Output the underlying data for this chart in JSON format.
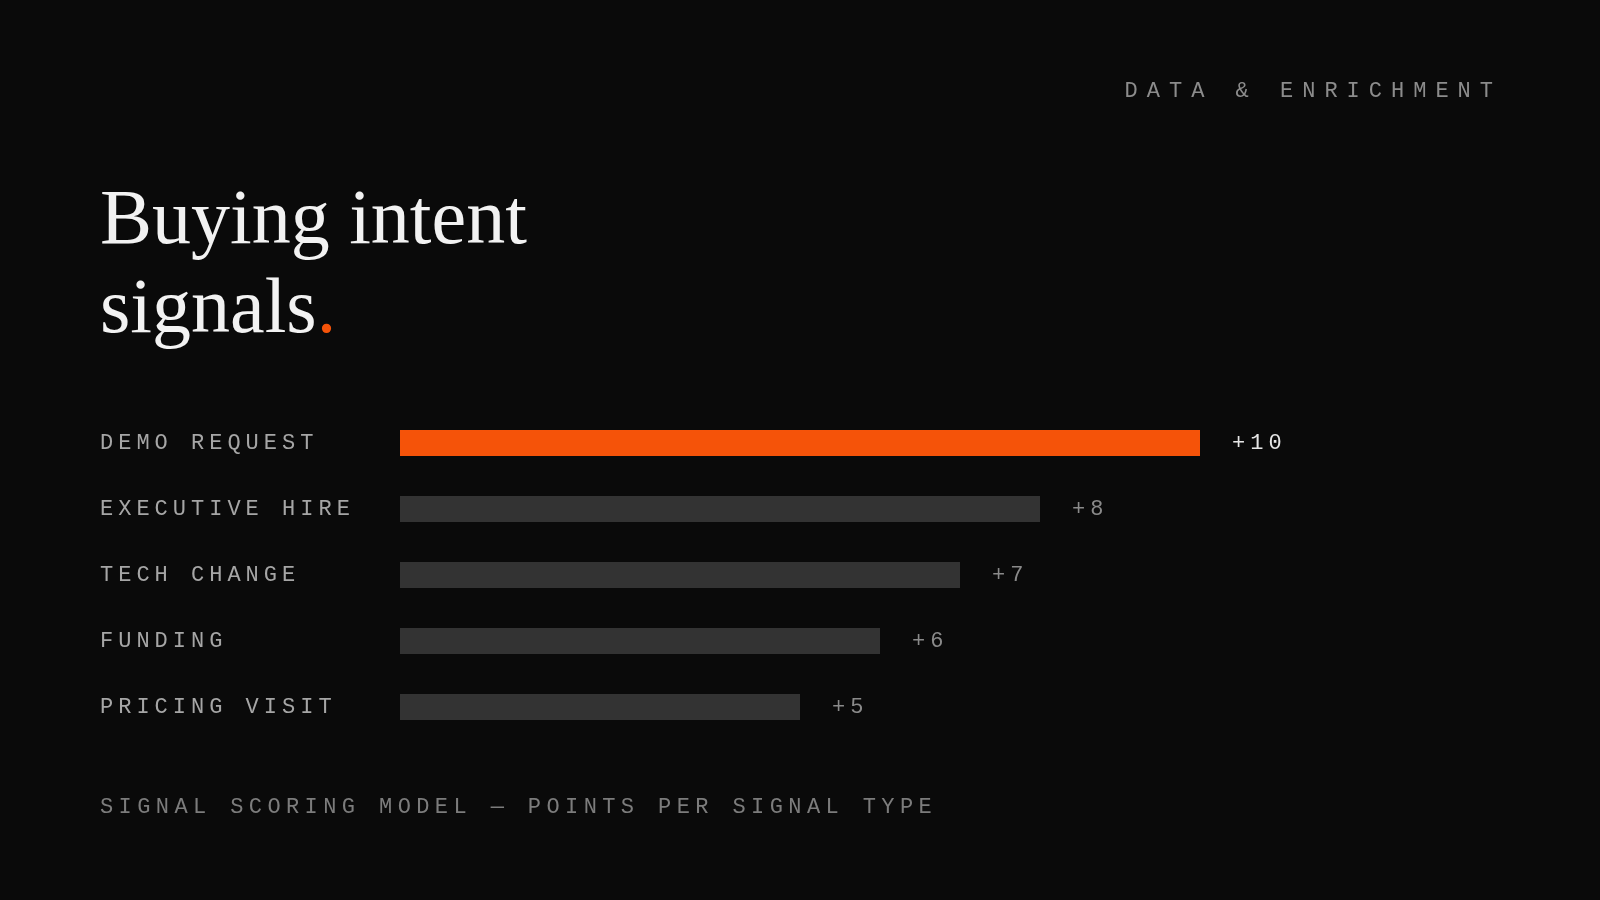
{
  "chart_data": {
    "type": "bar",
    "orientation": "horizontal",
    "title": "Buying intent signals.",
    "subtitle": "DATA & ENRICHMENT",
    "categories": [
      "DEMO REQUEST",
      "EXECUTIVE HIRE",
      "TECH CHANGE",
      "FUNDING",
      "PRICING VISIT"
    ],
    "values": [
      10,
      8,
      7,
      6,
      5
    ],
    "value_labels": [
      "+10",
      "+8",
      "+7",
      "+6",
      "+5"
    ],
    "colors": [
      "#f55309",
      "#333333",
      "#333333",
      "#333333",
      "#333333"
    ],
    "xlim": [
      0,
      10
    ],
    "tick_labels": "y",
    "grid": false,
    "annotations": [
      "SIGNAL SCORING MODEL — POINTS PER SIGNAL TYPE"
    ]
  }
}
